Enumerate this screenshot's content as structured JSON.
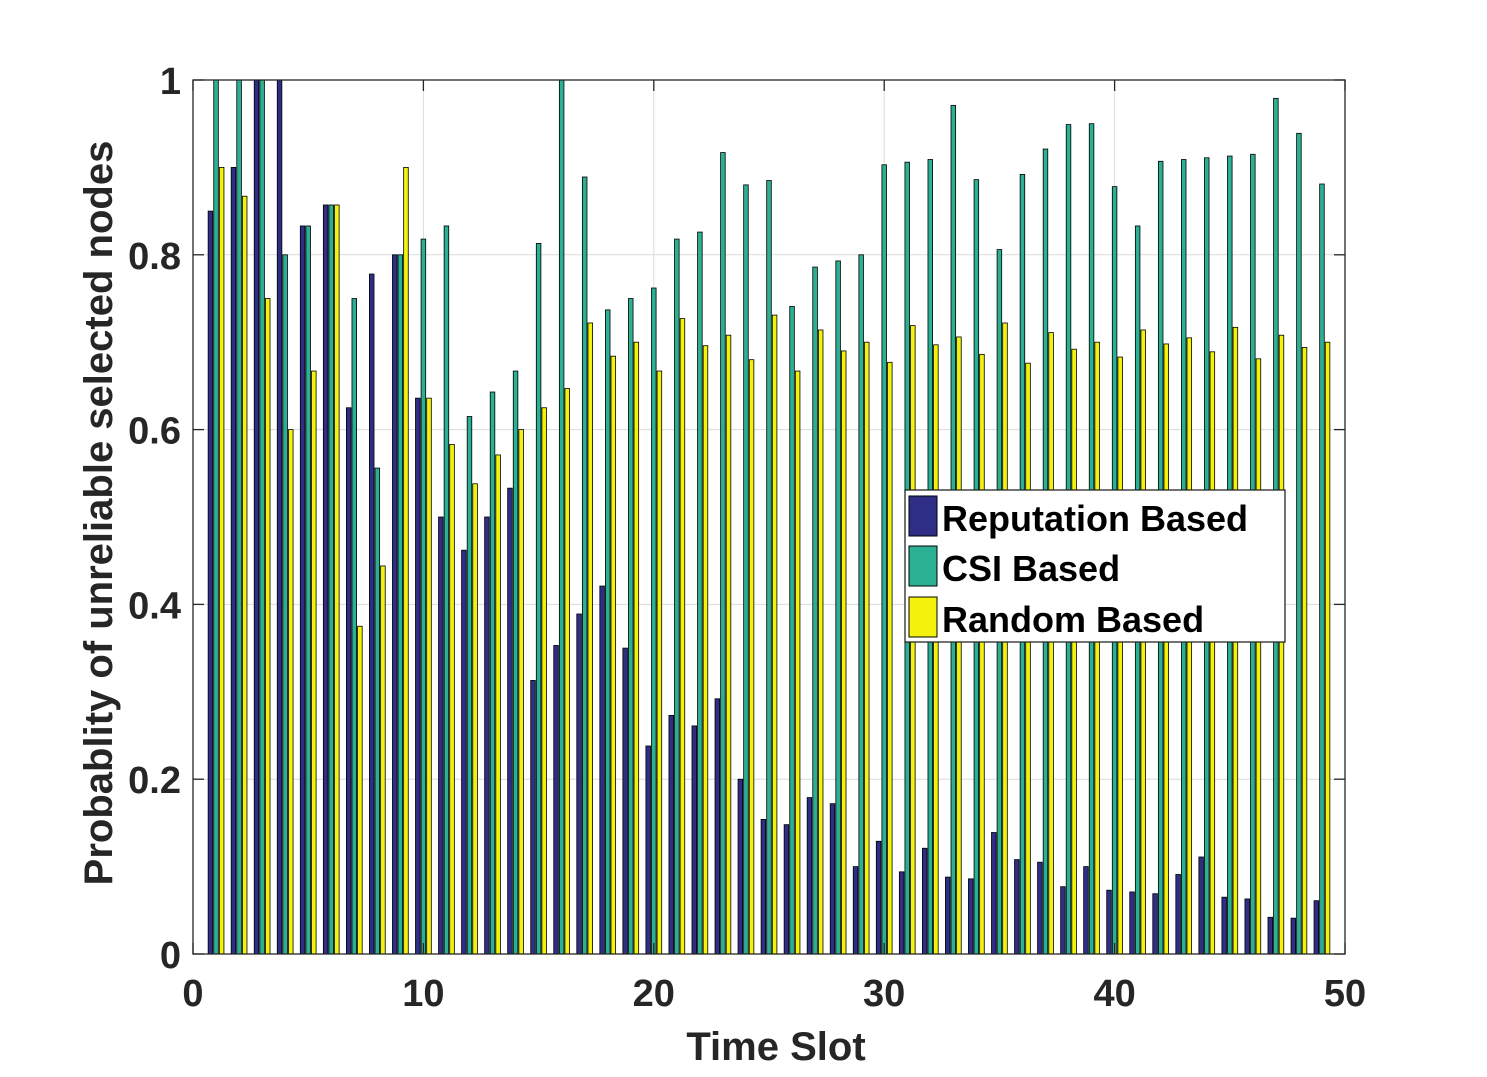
{
  "chart_data": {
    "type": "bar",
    "title": "",
    "xlabel": "Time Slot",
    "ylabel": "Probablity of unreliable selected nodes",
    "xlim": [
      0,
      50
    ],
    "ylim": [
      0,
      1
    ],
    "xticks": [
      0,
      10,
      20,
      30,
      40,
      50
    ],
    "yticks": [
      0,
      0.2,
      0.4,
      0.6,
      0.8,
      1
    ],
    "xtick_labels": [
      "0",
      "10",
      "20",
      "30",
      "40",
      "50"
    ],
    "ytick_labels": [
      "0",
      "0.2",
      "0.4",
      "0.6",
      "0.8",
      "1"
    ],
    "grid": true,
    "legend_position": "center-right",
    "x": [
      1,
      2,
      3,
      4,
      5,
      6,
      7,
      8,
      9,
      10,
      11,
      12,
      13,
      14,
      15,
      16,
      17,
      18,
      19,
      20,
      21,
      22,
      23,
      24,
      25,
      26,
      27,
      28,
      29,
      30,
      31,
      32,
      33,
      34,
      35,
      36,
      37,
      38,
      39,
      40,
      41,
      42,
      43,
      44,
      45,
      46,
      47,
      48,
      49
    ],
    "series": [
      {
        "name": "Reputation Based",
        "color": "#2e2e86",
        "values": [
          0.85,
          0.9,
          1.0,
          1.0,
          0.833,
          0.857,
          0.625,
          0.778,
          0.8,
          0.636,
          0.5,
          0.462,
          0.5,
          0.533,
          0.313,
          0.353,
          0.389,
          0.421,
          0.35,
          0.238,
          0.273,
          0.261,
          0.292,
          0.2,
          0.154,
          0.148,
          0.179,
          0.172,
          0.1,
          0.129,
          0.094,
          0.121,
          0.088,
          0.086,
          0.139,
          0.108,
          0.105,
          0.077,
          0.1,
          0.073,
          0.071,
          0.069,
          0.091,
          0.111,
          0.065,
          0.063,
          0.042,
          0.041,
          0.061
        ]
      },
      {
        "name": "CSI Based",
        "color": "#2bb094",
        "values": [
          1.0,
          1.0,
          1.0,
          0.8,
          0.833,
          0.857,
          0.75,
          0.556,
          0.8,
          0.818,
          0.833,
          0.615,
          0.643,
          0.667,
          0.813,
          1.0,
          0.889,
          0.737,
          0.75,
          0.762,
          0.818,
          0.826,
          0.917,
          0.88,
          0.885,
          0.741,
          0.786,
          0.793,
          0.8,
          0.903,
          0.906,
          0.909,
          0.971,
          0.886,
          0.806,
          0.892,
          0.921,
          0.949,
          0.95,
          0.878,
          0.833,
          0.907,
          0.909,
          0.911,
          0.913,
          0.915,
          0.979,
          0.939,
          0.881
        ]
      },
      {
        "name": "Random Based",
        "color": "#f2f20d",
        "values": [
          0.9,
          0.867,
          0.75,
          0.6,
          0.667,
          0.857,
          0.375,
          0.444,
          0.9,
          0.636,
          0.583,
          0.538,
          0.571,
          0.6,
          0.625,
          0.647,
          0.722,
          0.684,
          0.7,
          0.667,
          0.727,
          0.696,
          0.708,
          0.68,
          0.731,
          0.667,
          0.714,
          0.69,
          0.7,
          0.677,
          0.719,
          0.697,
          0.706,
          0.686,
          0.722,
          0.676,
          0.711,
          0.692,
          0.7,
          0.683,
          0.714,
          0.698,
          0.705,
          0.689,
          0.717,
          0.681,
          0.708,
          0.694,
          0.7
        ]
      }
    ]
  }
}
